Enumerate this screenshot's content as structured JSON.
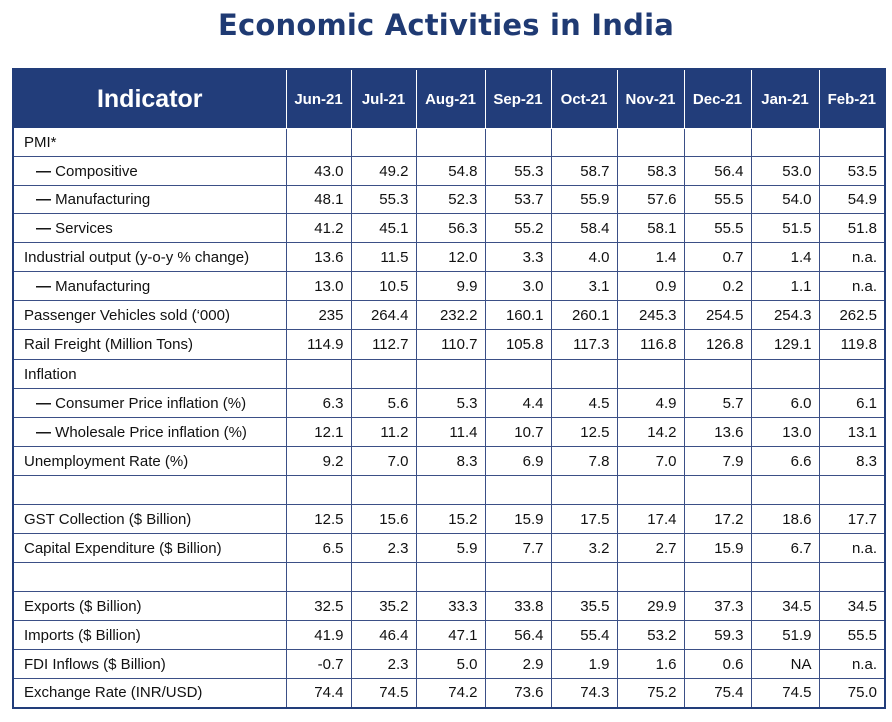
{
  "title": "Economic Activities in India",
  "table": {
    "header_label": "Indicator",
    "months": [
      "Jun-21",
      "Jul-21",
      "Aug-21",
      "Sep-21",
      "Oct-21",
      "Nov-21",
      "Dec-21",
      "Jan-21",
      "Feb-21"
    ],
    "rows": [
      {
        "kind": "section",
        "label": "PMI*",
        "values": []
      },
      {
        "kind": "sub",
        "label": "Compositive",
        "values": [
          "43.0",
          "49.2",
          "54.8",
          "55.3",
          "58.7",
          "58.3",
          "56.4",
          "53.0",
          "53.5"
        ]
      },
      {
        "kind": "sub",
        "label": "Manufacturing",
        "values": [
          "48.1",
          "55.3",
          "52.3",
          "53.7",
          "55.9",
          "57.6",
          "55.5",
          "54.0",
          "54.9"
        ]
      },
      {
        "kind": "sub",
        "label": "Services",
        "values": [
          "41.2",
          "45.1",
          "56.3",
          "55.2",
          "58.4",
          "58.1",
          "55.5",
          "51.5",
          "51.8"
        ]
      },
      {
        "kind": "main",
        "label": "Industrial output (y-o-y % change)",
        "values": [
          "13.6",
          "11.5",
          "12.0",
          "3.3",
          "4.0",
          "1.4",
          "0.7",
          "1.4",
          "n.a."
        ]
      },
      {
        "kind": "sub",
        "label": "Manufacturing",
        "values": [
          "13.0",
          "10.5",
          "9.9",
          "3.0",
          "3.1",
          "0.9",
          "0.2",
          "1.1",
          "n.a."
        ]
      },
      {
        "kind": "main",
        "label": "Passenger Vehicles sold (‘000)",
        "values": [
          "235",
          "264.4",
          "232.2",
          "160.1",
          "260.1",
          "245.3",
          "254.5",
          "254.3",
          "262.5"
        ]
      },
      {
        "kind": "main",
        "label": "Rail Freight (Million Tons)",
        "values": [
          "114.9",
          "112.7",
          "110.7",
          "105.8",
          "117.3",
          "116.8",
          "126.8",
          "129.1",
          "119.8"
        ]
      },
      {
        "kind": "section",
        "label": "Inflation",
        "values": []
      },
      {
        "kind": "sub",
        "label": "Consumer Price inflation (%)",
        "values": [
          "6.3",
          "5.6",
          "5.3",
          "4.4",
          "4.5",
          "4.9",
          "5.7",
          "6.0",
          "6.1"
        ]
      },
      {
        "kind": "sub",
        "label": "Wholesale Price inflation (%)",
        "values": [
          "12.1",
          "11.2",
          "11.4",
          "10.7",
          "12.5",
          "14.2",
          "13.6",
          "13.0",
          "13.1"
        ]
      },
      {
        "kind": "main",
        "label": "Unemployment Rate (%)",
        "values": [
          "9.2",
          "7.0",
          "8.3",
          "6.9",
          "7.8",
          "7.0",
          "7.9",
          "6.6",
          "8.3"
        ]
      },
      {
        "kind": "blank",
        "label": "",
        "values": []
      },
      {
        "kind": "main",
        "label": "GST Collection ($ Billion)",
        "values": [
          "12.5",
          "15.6",
          "15.2",
          "15.9",
          "17.5",
          "17.4",
          "17.2",
          "18.6",
          "17.7"
        ]
      },
      {
        "kind": "main",
        "label": "Capital Expenditure ($ Billion)",
        "values": [
          "6.5",
          "2.3",
          "5.9",
          "7.7",
          "3.2",
          "2.7",
          "15.9",
          "6.7",
          "n.a."
        ]
      },
      {
        "kind": "blank",
        "label": "",
        "values": []
      },
      {
        "kind": "main",
        "label": "Exports ($ Billion)",
        "values": [
          "32.5",
          "35.2",
          "33.3",
          "33.8",
          "35.5",
          "29.9",
          "37.3",
          "34.5",
          "34.5"
        ]
      },
      {
        "kind": "main",
        "label": "Imports ($ Billion)",
        "values": [
          "41.9",
          "46.4",
          "47.1",
          "56.4",
          "55.4",
          "53.2",
          "59.3",
          "51.9",
          "55.5"
        ]
      },
      {
        "kind": "main",
        "label": "FDI Inflows ($ Billion)",
        "values": [
          "-0.7",
          "2.3",
          "5.0",
          "2.9",
          "1.9",
          "1.6",
          "0.6",
          "NA",
          "n.a."
        ]
      },
      {
        "kind": "main",
        "label": "Exchange Rate (INR/USD)",
        "values": [
          "74.4",
          "74.5",
          "74.2",
          "73.6",
          "74.3",
          "75.2",
          "75.4",
          "74.5",
          "75.0"
        ]
      }
    ]
  }
}
